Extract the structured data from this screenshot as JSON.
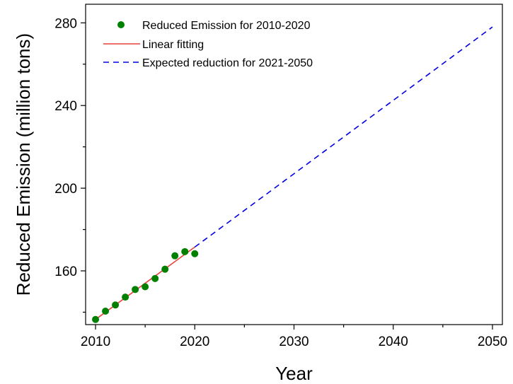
{
  "chart_data": {
    "type": "scatter",
    "title": "",
    "xlabel": "Year",
    "ylabel": "Reduced Emission (million tons)",
    "xlim": [
      2009,
      2051
    ],
    "ylim": [
      134,
      289
    ],
    "xticks": [
      2010,
      2020,
      2030,
      2040,
      2050
    ],
    "yticks": [
      160,
      200,
      240,
      280
    ],
    "grid": false,
    "legend_position": "top-left",
    "series": [
      {
        "name": "Reduced Emission for 2010-2020",
        "kind": "scatter",
        "color": "#008000",
        "x": [
          2010,
          2011,
          2012,
          2013,
          2014,
          2015,
          2016,
          2017,
          2018,
          2019,
          2020
        ],
        "y": [
          136.5,
          140.5,
          143.5,
          147.3,
          151,
          152.3,
          156.3,
          160.8,
          167.3,
          169.3,
          168.3
        ]
      },
      {
        "name": "Linear fitting",
        "kind": "line",
        "color": "#e8413c",
        "x": [
          2010,
          2020
        ],
        "y": [
          136.5,
          171.5
        ]
      },
      {
        "name": "Expected reduction for 2021-2050",
        "kind": "dashed-line",
        "color": "#0000e0",
        "x": [
          2020,
          2050
        ],
        "y": [
          171.5,
          278
        ]
      }
    ]
  }
}
